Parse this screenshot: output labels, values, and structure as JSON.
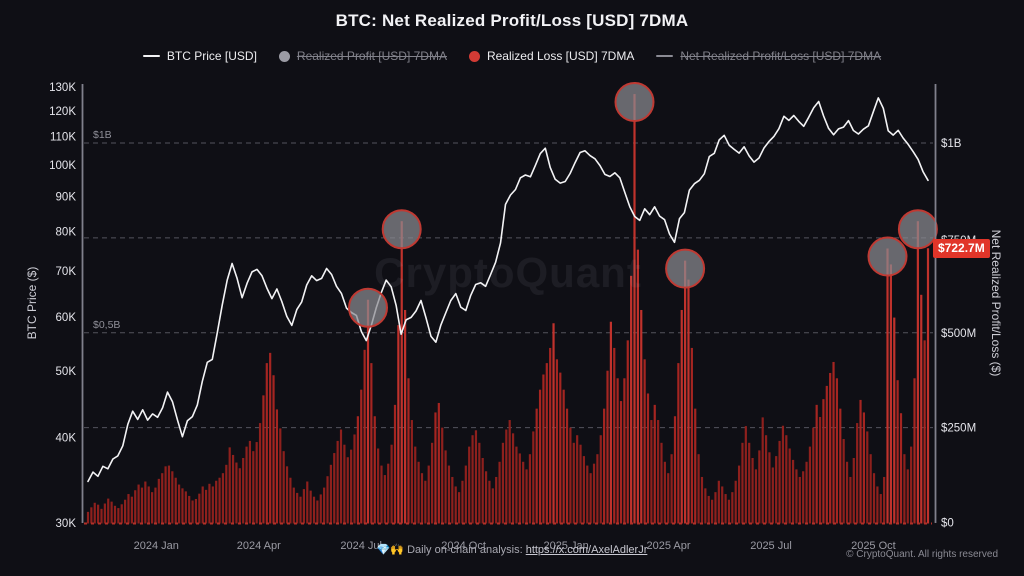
{
  "title": "BTC: Net Realized Profit/Loss [USD] 7DMA",
  "legend": {
    "items": [
      {
        "label": "BTC Price [USD]",
        "marker": "line",
        "color": "#f2f2f4",
        "enabled": true
      },
      {
        "label": "Realized Profit [USD] 7DMA",
        "marker": "dot",
        "color": "#9b9ba4",
        "enabled": false
      },
      {
        "label": "Realized Loss [USD] 7DMA",
        "marker": "dot",
        "color": "#d23b35",
        "enabled": true
      },
      {
        "label": "Net Realized Profit/Loss [USD] 7DMA",
        "marker": "line",
        "color": "#8b8b94",
        "enabled": false
      }
    ]
  },
  "watermark": "CryptoQuant",
  "footer": {
    "center_prefix": "💎🙌 Daily on-chain analysis: ",
    "link": "https://x.com/AxelAdlerJr",
    "copyright": "© CryptoQuant. All rights reserved"
  },
  "chart_data": {
    "type": "mixed",
    "title": "BTC: Net Realized Profit/Loss [USD] 7DMA",
    "x": {
      "start": "2023-11",
      "end": "2025-11",
      "ticks": [
        {
          "label": "2024 Jan",
          "month": 2
        },
        {
          "label": "2024 Apr",
          "month": 5
        },
        {
          "label": "2024 Jul",
          "month": 8
        },
        {
          "label": "2024 Oct",
          "month": 11
        },
        {
          "label": "2025 Jan",
          "month": 14
        },
        {
          "label": "2025 Apr",
          "month": 17
        },
        {
          "label": "2025 Jul",
          "month": 20
        },
        {
          "label": "2025 Oct",
          "month": 23
        }
      ]
    },
    "y_left": {
      "title": "BTC Price ($)",
      "scale": "log",
      "unit": "K USD",
      "ticks": [
        130,
        120,
        110,
        100,
        90,
        80,
        70,
        60,
        50,
        40,
        30
      ],
      "tick_suffix": "K",
      "range_k": [
        30,
        130
      ]
    },
    "y_right": {
      "title": "Net Realized Profit/Loss ($)",
      "scale": "linear",
      "unit": "M USD",
      "ticks": [
        {
          "label": "$1B",
          "value": 1000
        },
        {
          "label": "$750M",
          "value": 750
        },
        {
          "label": "$500M",
          "value": 500
        },
        {
          "label": "$250M",
          "value": 250
        },
        {
          "label": "$0",
          "value": 0
        }
      ],
      "gridlines": [
        1000,
        750,
        500,
        250
      ],
      "range_m": [
        0,
        1155
      ]
    },
    "series": [
      {
        "name": "BTC Price [USD]",
        "type": "line",
        "axis": "left",
        "color": "#f3f3f5",
        "visible": true,
        "values_k": [
          34.5,
          35.6,
          35.1,
          36.3,
          36.0,
          37.2,
          37.6,
          38.9,
          41.8,
          43.7,
          42.5,
          43.9,
          42.4,
          43.3,
          42.8,
          44.2,
          46.6,
          45.1,
          42.4,
          40.1,
          42.3,
          42.9,
          44.6,
          48.3,
          51.5,
          52.0,
          56.8,
          62.4,
          67.9,
          71.8,
          68.3,
          64.0,
          67.2,
          69.8,
          70.4,
          68.9,
          66.1,
          63.8,
          65.9,
          63.2,
          60.1,
          58.3,
          61.5,
          63.1,
          66.8,
          68.9,
          67.8,
          68.3,
          70.6,
          69.2,
          66.5,
          64.9,
          61.8,
          60.9,
          60.3,
          57.1,
          55.4,
          58.3,
          61.9,
          65.1,
          67.9,
          66.4,
          62.3,
          56.6,
          59.4,
          59.9,
          61.2,
          63.4,
          59.8,
          56.2,
          55.1,
          58.4,
          60.9,
          63.4,
          64.9,
          62.0,
          61.3,
          64.5,
          66.9,
          67.3,
          66.5,
          69.2,
          72.1,
          76.9,
          87.6,
          90.4,
          92.1,
          95.8,
          96.7,
          96.1,
          99.8,
          103.9,
          105.8,
          99.2,
          95.3,
          94.1,
          94.6,
          97.2,
          100.8,
          104.3,
          104.9,
          103.2,
          102.1,
          99.8,
          96.9,
          96.2,
          97.4,
          95.8,
          91.2,
          86.9,
          84.1,
          83.0,
          86.3,
          84.6,
          86.9,
          84.2,
          83.2,
          79.3,
          77.1,
          83.5,
          85.2,
          91.9,
          93.9,
          95.0,
          97.1,
          102.9,
          104.0,
          108.8,
          110.5,
          106.9,
          105.4,
          104.1,
          106.3,
          103.1,
          101.0,
          102.4,
          105.9,
          108.2,
          110.1,
          113.0,
          117.8,
          116.2,
          118.1,
          115.8,
          113.9,
          117.4,
          121.2,
          123.8,
          117.9,
          113.1,
          110.7,
          112.9,
          113.6,
          116.1,
          112.3,
          111.0,
          112.8,
          114.1,
          119.6,
          125.3,
          121.0,
          112.2,
          110.6,
          112.4,
          109.5,
          107.2,
          104.6,
          101.9,
          97.8,
          95.0
        ]
      },
      {
        "name": "Realized Loss [USD] 7DMA",
        "type": "bar",
        "axis": "right",
        "color": "#a02522",
        "visible": true,
        "values_m": [
          28,
          40,
          52,
          47,
          36,
          50,
          63,
          55,
          44,
          38,
          48,
          60,
          75,
          68,
          85,
          100,
          92,
          108,
          95,
          80,
          92,
          115,
          130,
          148,
          150,
          135,
          118,
          100,
          90,
          82,
          70,
          58,
          62,
          76,
          95,
          86,
          102,
          95,
          110,
          118,
          130,
          152,
          198,
          178,
          158,
          143,
          170,
          200,
          215,
          188,
          212,
          262,
          335,
          420,
          447,
          388,
          298,
          248,
          188,
          148,
          118,
          92,
          78,
          68,
          88,
          108,
          84,
          68,
          58,
          74,
          92,
          122,
          152,
          183,
          215,
          245,
          205,
          172,
          192,
          232,
          280,
          350,
          455,
          587,
          420,
          280,
          195,
          150,
          125,
          155,
          205,
          310,
          520,
          794,
          560,
          380,
          270,
          200,
          160,
          130,
          110,
          150,
          210,
          290,
          315,
          250,
          190,
          150,
          120,
          95,
          80,
          110,
          150,
          200,
          230,
          243,
          210,
          170,
          135,
          110,
          90,
          120,
          160,
          210,
          245,
          270,
          235,
          200,
          182,
          160,
          140,
          180,
          240,
          300,
          350,
          390,
          420,
          460,
          525,
          430,
          395,
          350,
          300,
          250,
          210,
          230,
          205,
          175,
          150,
          130,
          155,
          180,
          230,
          300,
          400,
          529,
          460,
          380,
          320,
          380,
          480,
          650,
          1129,
          719,
          560,
          430,
          340,
          270,
          310,
          270,
          210,
          160,
          130,
          180,
          280,
          420,
          560,
          690,
          640,
          460,
          300,
          180,
          120,
          90,
          70,
          60,
          80,
          110,
          95,
          75,
          60,
          80,
          110,
          150,
          210,
          254,
          210,
          170,
          140,
          190,
          277,
          230,
          185,
          145,
          175,
          215,
          255,
          230,
          195,
          165,
          140,
          120,
          135,
          160,
          200,
          250,
          310,
          278,
          325,
          360,
          394,
          423,
          380,
          300,
          220,
          160,
          120,
          170,
          262,
          323,
          290,
          240,
          180,
          130,
          95,
          75,
          120,
          722,
          680,
          540,
          375,
          288,
          180,
          140,
          200,
          380,
          794,
          600,
          480,
          722.7
        ]
      },
      {
        "name": "Realized Profit [USD] 7DMA",
        "type": "dot",
        "axis": "right",
        "color": "#9b9ba4",
        "visible": false
      },
      {
        "name": "Net Realized Profit/Loss [USD] 7DMA",
        "type": "line",
        "axis": "right",
        "color": "#8b8b94",
        "visible": false
      }
    ],
    "highlights": {
      "series": "Realized Loss [USD] 7DMA",
      "indices": [
        83,
        93,
        162,
        177,
        237,
        246
      ],
      "radius": 19,
      "fill": "rgba(138,138,146,0.72)",
      "stroke": "#bf3a33"
    },
    "annotations": {
      "left_line_labels": [
        {
          "text": "$1B",
          "value": 1000
        },
        {
          "text": "$0,5B",
          "value": 500
        }
      ],
      "last_value": {
        "label": "$722.7M",
        "value_m": 722.7,
        "color": "#e13529"
      }
    }
  }
}
